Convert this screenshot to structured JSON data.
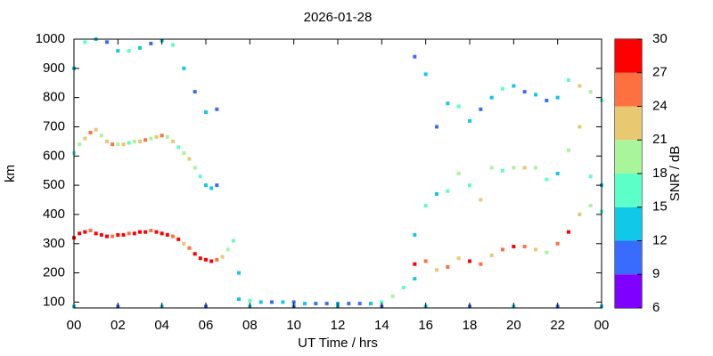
{
  "chart_data": {
    "type": "scatter",
    "title": "2026-01-28",
    "x_label": "UT Time / hrs",
    "y_label": "km",
    "colorbar_label": "SNR / dB",
    "xlim": [
      0,
      24
    ],
    "xticks": [
      {
        "value": 0,
        "label": "00"
      },
      {
        "value": 2,
        "label": "02"
      },
      {
        "value": 4,
        "label": "04"
      },
      {
        "value": 6,
        "label": "06"
      },
      {
        "value": 8,
        "label": "08"
      },
      10,
      12,
      14,
      16,
      18,
      20,
      22,
      {
        "value": 24,
        "label": "00"
      }
    ],
    "ylim": [
      80,
      1000
    ],
    "yticks": [
      100,
      200,
      300,
      400,
      500,
      600,
      700,
      800,
      900,
      1000
    ],
    "clim": [
      6,
      30
    ],
    "cticks": [
      6,
      9,
      12,
      15,
      18,
      21,
      24,
      27,
      30
    ],
    "colors": [
      "#7f00ff",
      "#3a6bff",
      "#10c8e8",
      "#5cffc8",
      "#a8f59a",
      "#e8c870",
      "#ff7040",
      "#ff0000"
    ],
    "series": [
      {
        "x": [
          0,
          0.25,
          0.5,
          0.75,
          1,
          1.25,
          1.5,
          1.75,
          2,
          2.25,
          2.5,
          2.75,
          3,
          3.25,
          3.5,
          3.75,
          4,
          4.25,
          4.5,
          4.75,
          5,
          5.25,
          5.5,
          5.75,
          6,
          6.25,
          6.5,
          6.75,
          7,
          7.25,
          7.5
        ],
        "values": [
          320,
          335,
          340,
          345,
          335,
          330,
          325,
          325,
          330,
          330,
          335,
          335,
          340,
          340,
          345,
          340,
          335,
          330,
          325,
          315,
          300,
          285,
          265,
          250,
          245,
          240,
          245,
          255,
          280,
          310,
          200
        ],
        "snr": [
          27,
          30,
          28,
          24,
          27,
          30,
          28,
          25,
          27,
          29,
          26,
          28,
          27,
          30,
          25,
          28,
          27,
          29,
          24,
          27,
          22,
          25,
          28,
          30,
          27,
          29,
          25,
          21,
          18,
          15,
          12
        ]
      },
      {
        "x": [
          0,
          0.25,
          0.5,
          0.75,
          1,
          1.25,
          1.5,
          1.75,
          2,
          2.25,
          2.5,
          2.75,
          3,
          3.25,
          3.5,
          3.75,
          4,
          4.25,
          4.5,
          4.75,
          5,
          5.25,
          5.5,
          5.75,
          6,
          6.25,
          6.5
        ],
        "values": [
          610,
          640,
          660,
          680,
          690,
          670,
          650,
          640,
          640,
          640,
          645,
          650,
          650,
          655,
          660,
          665,
          670,
          665,
          650,
          630,
          610,
          590,
          560,
          530,
          500,
          490,
          500
        ],
        "snr": [
          15,
          18,
          21,
          24,
          21,
          18,
          21,
          24,
          18,
          21,
          15,
          18,
          21,
          24,
          18,
          21,
          24,
          18,
          21,
          15,
          18,
          21,
          18,
          15,
          12,
          12,
          9
        ]
      },
      {
        "x": [
          0,
          0.5,
          1,
          1.5,
          2,
          2.5,
          3,
          3.5,
          4,
          4.5,
          5,
          5.5,
          6,
          6.5
        ],
        "values": [
          900,
          990,
          1000,
          990,
          960,
          960,
          970,
          985,
          995,
          980,
          900,
          820,
          750,
          760
        ],
        "snr": [
          12,
          15,
          12,
          9,
          12,
          15,
          12,
          9,
          12,
          15,
          12,
          9,
          12,
          9
        ]
      },
      {
        "x": [
          7.5,
          8,
          8.5,
          9,
          9.5,
          10,
          10.5,
          11,
          11.5,
          12,
          12.5,
          13,
          13.5,
          14,
          14.5,
          15,
          15.5
        ],
        "values": [
          110,
          105,
          100,
          100,
          100,
          100,
          95,
          95,
          95,
          95,
          95,
          95,
          95,
          100,
          120,
          150,
          180
        ],
        "snr": [
          12,
          15,
          12,
          9,
          12,
          9,
          12,
          9,
          9,
          12,
          9,
          9,
          12,
          15,
          18,
          15,
          12
        ]
      },
      {
        "x": [
          15.5,
          16,
          16.5,
          17,
          17.5,
          18,
          18.5,
          19,
          19.5,
          20,
          20.5,
          21,
          21.5,
          22,
          22.5,
          23,
          23.5,
          24
        ],
        "values": [
          230,
          240,
          210,
          220,
          250,
          240,
          230,
          260,
          280,
          290,
          290,
          280,
          270,
          300,
          340,
          400,
          430,
          410
        ],
        "snr": [
          27,
          24,
          21,
          24,
          21,
          27,
          24,
          21,
          24,
          27,
          24,
          21,
          18,
          24,
          27,
          21,
          18,
          15
        ]
      },
      {
        "x": [
          15.5,
          16,
          16.5,
          17,
          17.5,
          18,
          18.5,
          19,
          19.5,
          20,
          20.5,
          21,
          21.5,
          22,
          22.5,
          23,
          23.5,
          24
        ],
        "values": [
          330,
          430,
          470,
          480,
          540,
          500,
          450,
          560,
          550,
          560,
          560,
          560,
          520,
          540,
          620,
          700,
          530,
          500
        ],
        "snr": [
          12,
          15,
          12,
          15,
          18,
          15,
          21,
          18,
          15,
          18,
          21,
          18,
          15,
          12,
          18,
          21,
          15,
          12
        ]
      },
      {
        "x": [
          15.5,
          16,
          16.5,
          17,
          17.5,
          18,
          18.5,
          19,
          19.5,
          20,
          20.5,
          21,
          21.5,
          22,
          22.5,
          23,
          23.5,
          24
        ],
        "values": [
          940,
          880,
          700,
          780,
          770,
          720,
          760,
          800,
          830,
          840,
          820,
          810,
          790,
          800,
          860,
          840,
          820,
          790
        ],
        "snr": [
          9,
          12,
          9,
          12,
          15,
          12,
          9,
          12,
          15,
          12,
          9,
          12,
          9,
          12,
          15,
          21,
          18,
          15
        ]
      },
      {
        "x": [
          0,
          2,
          4,
          6,
          8,
          10,
          12,
          14,
          16,
          18,
          20,
          22,
          24
        ],
        "values": [
          85,
          85,
          85,
          85,
          85,
          85,
          85,
          85,
          85,
          85,
          85,
          85,
          85
        ],
        "snr": [
          12,
          9,
          12,
          9,
          12,
          9,
          12,
          9,
          12,
          9,
          12,
          9,
          12
        ]
      }
    ]
  }
}
